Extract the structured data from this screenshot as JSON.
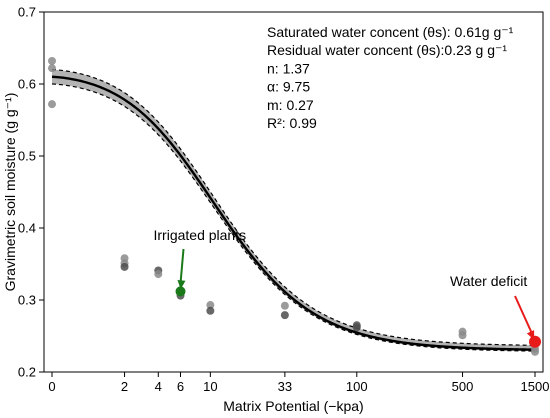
{
  "chart_data": {
    "type": "line",
    "xlabel": "Matrix Potential (−kpa)",
    "ylabel": "Gravimetric soil moisture (g g⁻¹)",
    "x_scale": "log",
    "ylim": [
      0.2,
      0.7
    ],
    "y_ticks": [
      "0.2",
      "0.3",
      "0.4",
      "0.5",
      "0.6",
      "0.7"
    ],
    "x_ticks": [
      {
        "value": 0,
        "label": "0"
      },
      {
        "value": 2,
        "label": "2"
      },
      {
        "value": 4,
        "label": "4"
      },
      {
        "value": 6,
        "label": "6"
      },
      {
        "value": 10,
        "label": "10"
      },
      {
        "value": 33,
        "label": "33"
      },
      {
        "value": 100,
        "label": "100"
      },
      {
        "value": 500,
        "label": "500"
      },
      {
        "value": 1500,
        "label": "1500"
      }
    ],
    "fit": {
      "model": "van Genuchten",
      "theta_s": 0.61,
      "theta_r": 0.23,
      "n": 1.37,
      "alpha": 9.75,
      "m": 0.27,
      "band_s": [
        0.62,
        0.6
      ],
      "band_r": [
        0.228,
        0.236
      ]
    },
    "points": [
      {
        "x": 0,
        "y": 0.632,
        "shade": "light"
      },
      {
        "x": 0,
        "y": 0.622,
        "shade": "light"
      },
      {
        "x": 0,
        "y": 0.572,
        "shade": "light"
      },
      {
        "x": 2,
        "y": 0.358,
        "shade": "light"
      },
      {
        "x": 2,
        "y": 0.351,
        "shade": "light"
      },
      {
        "x": 2,
        "y": 0.346,
        "shade": "dark"
      },
      {
        "x": 4,
        "y": 0.341,
        "shade": "dark"
      },
      {
        "x": 4,
        "y": 0.336,
        "shade": "light"
      },
      {
        "x": 6,
        "y": 0.313,
        "shade": "dark"
      },
      {
        "x": 6,
        "y": 0.306,
        "shade": "dark"
      },
      {
        "x": 10,
        "y": 0.293,
        "shade": "light"
      },
      {
        "x": 10,
        "y": 0.285,
        "shade": "dark"
      },
      {
        "x": 33,
        "y": 0.292,
        "shade": "light"
      },
      {
        "x": 33,
        "y": 0.279,
        "shade": "dark"
      },
      {
        "x": 100,
        "y": 0.265,
        "shade": "dark"
      },
      {
        "x": 100,
        "y": 0.262,
        "shade": "dark"
      },
      {
        "x": 500,
        "y": 0.256,
        "shade": "light"
      },
      {
        "x": 500,
        "y": 0.251,
        "shade": "light"
      },
      {
        "x": 1500,
        "y": 0.232,
        "shade": "light"
      },
      {
        "x": 1500,
        "y": 0.228,
        "shade": "light"
      }
    ],
    "annotations": [
      "Saturated water concent (θs): 0.61g g⁻¹",
      "Residual water concent (θs):0.23 g g⁻¹",
      "n: 1.37",
      "α: 9.75",
      "m: 0.27",
      "R²: 0.99"
    ],
    "callouts": [
      {
        "label": "Irrigated plants",
        "x": 6,
        "y": 0.312,
        "color": "#1a7a1a"
      },
      {
        "label": "Water deficit",
        "x": 1500,
        "y": 0.242,
        "color": "#e81b1b"
      }
    ],
    "colors": {
      "band": "#b3b3b3",
      "fit_line": "#000000",
      "point_light": "#8a8a8a",
      "point_dark": "#4d4d4d"
    }
  }
}
